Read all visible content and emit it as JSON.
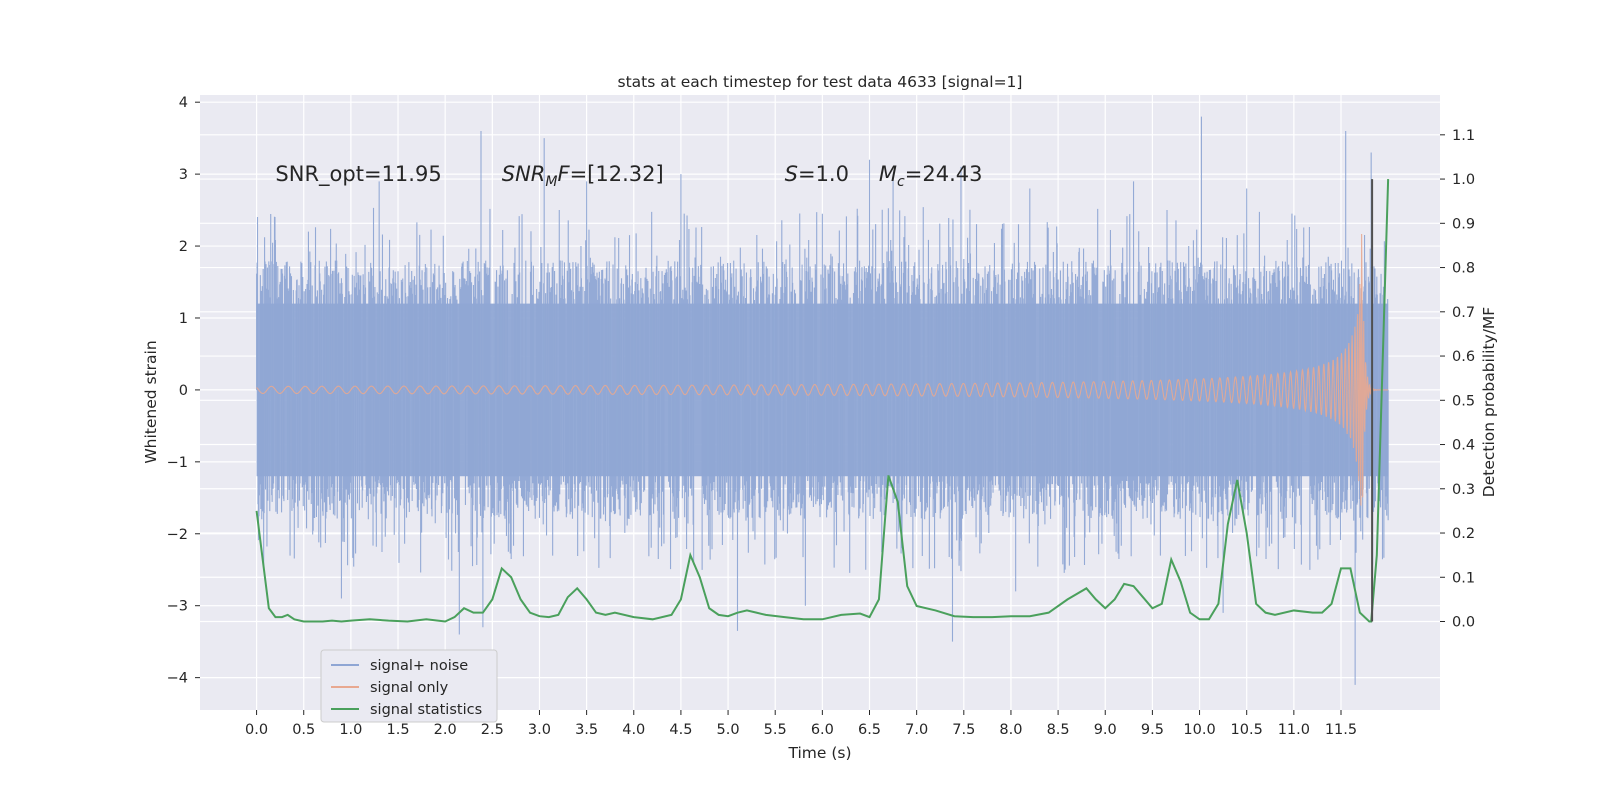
{
  "chart_data": {
    "type": "line",
    "title": "stats at each timestep for test data 4633 [signal=1]",
    "xlabel": "Time (s)",
    "ylabel": "Whitened strain",
    "y2label": "Detection probability/MF",
    "xlim": [
      -0.6,
      12.55
    ],
    "ylim": [
      -4.45,
      4.1
    ],
    "y2lim": [
      -0.2,
      1.19
    ],
    "x_ticks": [
      "0.0",
      "0.5",
      "1.0",
      "1.5",
      "2.0",
      "2.5",
      "3.0",
      "3.5",
      "4.0",
      "4.5",
      "5.0",
      "5.5",
      "6.0",
      "6.5",
      "7.0",
      "7.5",
      "8.0",
      "8.5",
      "9.0",
      "9.5",
      "10.0",
      "10.5",
      "11.0",
      "11.5"
    ],
    "y_ticks": [
      "−4",
      "−3",
      "−2",
      "−1",
      "0",
      "1",
      "2",
      "3",
      "4"
    ],
    "y2_ticks": [
      "0.0",
      "0.1",
      "0.2",
      "0.3",
      "0.4",
      "0.5",
      "0.6",
      "0.7",
      "0.8",
      "0.9",
      "1.0",
      "1.1"
    ],
    "grid": true,
    "legend_position": "lower-left",
    "annotations": [
      {
        "name": "snr-opt",
        "label": "SNR_opt",
        "value": "=11.95",
        "x": 0.2,
        "y": 3.0,
        "italic_symbol": false
      },
      {
        "name": "snr-mf",
        "label": "SNR",
        "sub": "M",
        "suffix": "F",
        "value": "=[12.32]",
        "x": 2.6,
        "y": 3.0,
        "italic_symbol": true
      },
      {
        "name": "s-value",
        "label": "S",
        "value": "=1.0",
        "x": 5.6,
        "y": 3.0,
        "italic_symbol": true
      },
      {
        "name": "mc-value",
        "label": "M",
        "sub": "c",
        "value": "=24.43",
        "x": 6.6,
        "y": 3.0,
        "italic_symbol": true
      }
    ],
    "series": [
      {
        "name": "signal+ noise",
        "color": "#8fa6d4",
        "x_range": [
          0.0,
          12.0
        ],
        "typical_amplitude": 1.8,
        "peaks": [
          {
            "x": 0.55,
            "y": 2.2
          },
          {
            "x": 1.3,
            "y": 2.9
          },
          {
            "x": 2.38,
            "y": 3.6
          },
          {
            "x": 3.05,
            "y": 3.5
          },
          {
            "x": 3.5,
            "y": 2.9
          },
          {
            "x": 4.5,
            "y": 3.0
          },
          {
            "x": 6.5,
            "y": 3.2
          },
          {
            "x": 6.75,
            "y": 3.0
          },
          {
            "x": 7.47,
            "y": 3.1
          },
          {
            "x": 8.2,
            "y": 2.8
          },
          {
            "x": 9.3,
            "y": 2.9
          },
          {
            "x": 10.02,
            "y": 3.8
          },
          {
            "x": 10.5,
            "y": 2.8
          },
          {
            "x": 11.55,
            "y": 3.6
          },
          {
            "x": 11.82,
            "y": 3.3
          },
          {
            "x": 0.9,
            "y": -2.9
          },
          {
            "x": 2.15,
            "y": -3.4
          },
          {
            "x": 2.4,
            "y": -3.3
          },
          {
            "x": 5.1,
            "y": -3.35
          },
          {
            "x": 5.82,
            "y": -3.0
          },
          {
            "x": 7.38,
            "y": -3.5
          },
          {
            "x": 8.05,
            "y": -2.8
          },
          {
            "x": 10.25,
            "y": -3.1
          },
          {
            "x": 11.65,
            "y": -4.1
          }
        ]
      },
      {
        "name": "signal only",
        "color": "#e8a890",
        "x_range": [
          0.0,
          12.0
        ],
        "merger_time": 11.72,
        "peak_amplitude": 2.25
      },
      {
        "name": "signal statistics",
        "color": "#4aa05c",
        "axis": "right",
        "x": [
          0.0,
          0.13,
          0.2,
          0.27,
          0.33,
          0.4,
          0.5,
          0.6,
          0.7,
          0.8,
          0.9,
          1.0,
          1.2,
          1.4,
          1.6,
          1.8,
          2.0,
          2.1,
          2.2,
          2.3,
          2.4,
          2.5,
          2.6,
          2.7,
          2.8,
          2.9,
          3.0,
          3.1,
          3.2,
          3.3,
          3.4,
          3.5,
          3.6,
          3.7,
          3.8,
          4.0,
          4.2,
          4.4,
          4.5,
          4.6,
          4.7,
          4.8,
          4.9,
          5.0,
          5.1,
          5.2,
          5.3,
          5.4,
          5.6,
          5.8,
          6.0,
          6.2,
          6.4,
          6.5,
          6.6,
          6.7,
          6.8,
          6.9,
          7.0,
          7.2,
          7.4,
          7.6,
          7.8,
          8.0,
          8.2,
          8.4,
          8.6,
          8.8,
          8.9,
          9.0,
          9.1,
          9.2,
          9.3,
          9.4,
          9.5,
          9.6,
          9.7,
          9.8,
          9.9,
          10.0,
          10.1,
          10.2,
          10.3,
          10.4,
          10.5,
          10.6,
          10.7,
          10.8,
          11.0,
          11.2,
          11.3,
          11.4,
          11.5,
          11.6,
          11.7,
          11.8,
          11.82,
          11.88,
          12.0
        ],
        "values": [
          0.25,
          0.03,
          0.01,
          0.01,
          0.015,
          0.005,
          0.0,
          0.0,
          0.0,
          0.002,
          0.0,
          0.002,
          0.005,
          0.002,
          0.0,
          0.005,
          0.0,
          0.01,
          0.03,
          0.02,
          0.02,
          0.05,
          0.12,
          0.1,
          0.05,
          0.02,
          0.012,
          0.01,
          0.015,
          0.055,
          0.075,
          0.05,
          0.02,
          0.015,
          0.02,
          0.01,
          0.005,
          0.015,
          0.05,
          0.15,
          0.1,
          0.03,
          0.015,
          0.012,
          0.02,
          0.025,
          0.02,
          0.015,
          0.01,
          0.005,
          0.005,
          0.015,
          0.018,
          0.01,
          0.05,
          0.33,
          0.27,
          0.08,
          0.035,
          0.025,
          0.012,
          0.01,
          0.01,
          0.012,
          0.012,
          0.02,
          0.05,
          0.075,
          0.05,
          0.03,
          0.05,
          0.085,
          0.08,
          0.055,
          0.03,
          0.04,
          0.14,
          0.09,
          0.02,
          0.005,
          0.005,
          0.04,
          0.22,
          0.32,
          0.2,
          0.04,
          0.02,
          0.015,
          0.025,
          0.02,
          0.02,
          0.04,
          0.12,
          0.12,
          0.02,
          0.0,
          0.0,
          0.15,
          1.0
        ]
      }
    ],
    "marker_line": {
      "x": 11.83,
      "y_from": 0.0,
      "y_to": 1.0,
      "color": "#505050"
    }
  }
}
